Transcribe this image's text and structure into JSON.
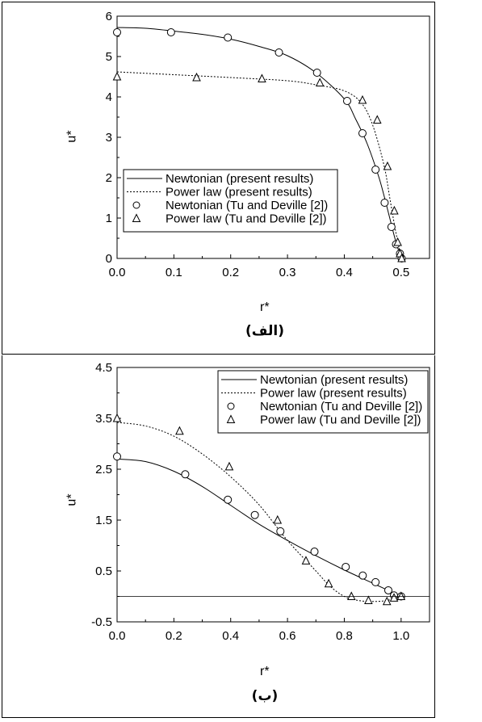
{
  "chart_data": [
    {
      "type": "line",
      "caption": "(الف)",
      "xlabel": "r*",
      "ylabel": "u*",
      "xlim": [
        0.0,
        0.55
      ],
      "ylim": [
        0,
        6
      ],
      "xticks": [
        "0.0",
        "0.1",
        "0.2",
        "0.3",
        "0.4",
        "0.5"
      ],
      "yticks": [
        "0",
        "1",
        "2",
        "3",
        "4",
        "5",
        "6"
      ],
      "legend_position": "bottom-left",
      "series": [
        {
          "name": "Newtonian (present results)",
          "style": "solid",
          "x": [
            0.0,
            0.05,
            0.1,
            0.15,
            0.2,
            0.25,
            0.3,
            0.35,
            0.4,
            0.42,
            0.44,
            0.46,
            0.47,
            0.48,
            0.49,
            0.5
          ],
          "y": [
            5.72,
            5.7,
            5.63,
            5.55,
            5.43,
            5.25,
            5.02,
            4.6,
            3.95,
            3.45,
            2.85,
            2.05,
            1.55,
            1.0,
            0.45,
            0.0
          ]
        },
        {
          "name": "Power law (present results)",
          "style": "dotted",
          "x": [
            0.0,
            0.1,
            0.2,
            0.3,
            0.35,
            0.4,
            0.43,
            0.45,
            0.47,
            0.48,
            0.49,
            0.5
          ],
          "y": [
            4.62,
            4.55,
            4.48,
            4.4,
            4.3,
            4.15,
            3.85,
            3.3,
            2.3,
            1.5,
            0.7,
            0.0
          ]
        },
        {
          "name": "Newtonian (Tu and Deville [2])",
          "style": "marker-circle",
          "x": [
            0.0,
            0.095,
            0.195,
            0.285,
            0.352,
            0.405,
            0.432,
            0.455,
            0.471,
            0.483,
            0.491,
            0.498,
            0.501
          ],
          "y": [
            5.6,
            5.6,
            5.47,
            5.1,
            4.6,
            3.9,
            3.1,
            2.2,
            1.38,
            0.78,
            0.35,
            0.12,
            0.0
          ]
        },
        {
          "name": "Power law (Tu and Deville [2])",
          "style": "marker-triangle",
          "x": [
            0.0,
            0.14,
            0.255,
            0.357,
            0.432,
            0.458,
            0.476,
            0.488,
            0.494,
            0.498,
            0.501
          ],
          "y": [
            4.5,
            4.48,
            4.45,
            4.35,
            3.92,
            3.43,
            2.28,
            1.18,
            0.4,
            0.12,
            0.0
          ]
        }
      ]
    },
    {
      "type": "line",
      "caption": "(ب)",
      "xlabel": "r*",
      "ylabel": "u*",
      "xlim": [
        0.0,
        1.1
      ],
      "ylim": [
        -0.5,
        4.5
      ],
      "xticks": [
        "0.0",
        "0.2",
        "0.4",
        "0.6",
        "0.8",
        "1.0"
      ],
      "yticks": [
        "-0.5",
        "0.5",
        "1.5",
        "2.5",
        "3.5",
        "4.5"
      ],
      "legend_position": "top-right",
      "series": [
        {
          "name": "Newtonian (present results)",
          "style": "solid",
          "x": [
            0.0,
            0.1,
            0.2,
            0.3,
            0.4,
            0.5,
            0.6,
            0.7,
            0.8,
            0.9,
            1.0
          ],
          "y": [
            2.7,
            2.65,
            2.46,
            2.16,
            1.79,
            1.42,
            1.1,
            0.8,
            0.52,
            0.26,
            0.0
          ]
        },
        {
          "name": "Power law (present results)",
          "style": "dotted",
          "x": [
            0.0,
            0.1,
            0.2,
            0.3,
            0.4,
            0.5,
            0.6,
            0.7,
            0.75,
            0.8,
            0.85,
            0.9,
            0.95,
            1.0
          ],
          "y": [
            3.42,
            3.35,
            3.15,
            2.8,
            2.35,
            1.8,
            1.1,
            0.5,
            0.2,
            0.0,
            -0.08,
            -0.1,
            -0.08,
            0.0
          ]
        },
        {
          "name": "Newtonian (Tu and Deville [2])",
          "style": "marker-circle",
          "x": [
            0.0,
            0.24,
            0.39,
            0.485,
            0.575,
            0.695,
            0.805,
            0.865,
            0.91,
            0.955,
            0.975,
            1.0
          ],
          "y": [
            2.75,
            2.4,
            1.9,
            1.6,
            1.28,
            0.88,
            0.58,
            0.41,
            0.28,
            0.12,
            0.02,
            0.0
          ]
        },
        {
          "name": "Power law (Tu and Deville [2])",
          "style": "marker-triangle",
          "x": [
            0.0,
            0.22,
            0.395,
            0.565,
            0.665,
            0.745,
            0.825,
            0.885,
            0.95,
            0.975,
            1.0
          ],
          "y": [
            3.5,
            3.25,
            2.55,
            1.5,
            0.7,
            0.25,
            0.0,
            -0.08,
            -0.1,
            -0.03,
            0.0
          ]
        },
        {
          "name": "",
          "style": "zero-line",
          "x": [
            0.0,
            1.1
          ],
          "y": [
            0.0,
            0.0
          ]
        }
      ]
    }
  ]
}
